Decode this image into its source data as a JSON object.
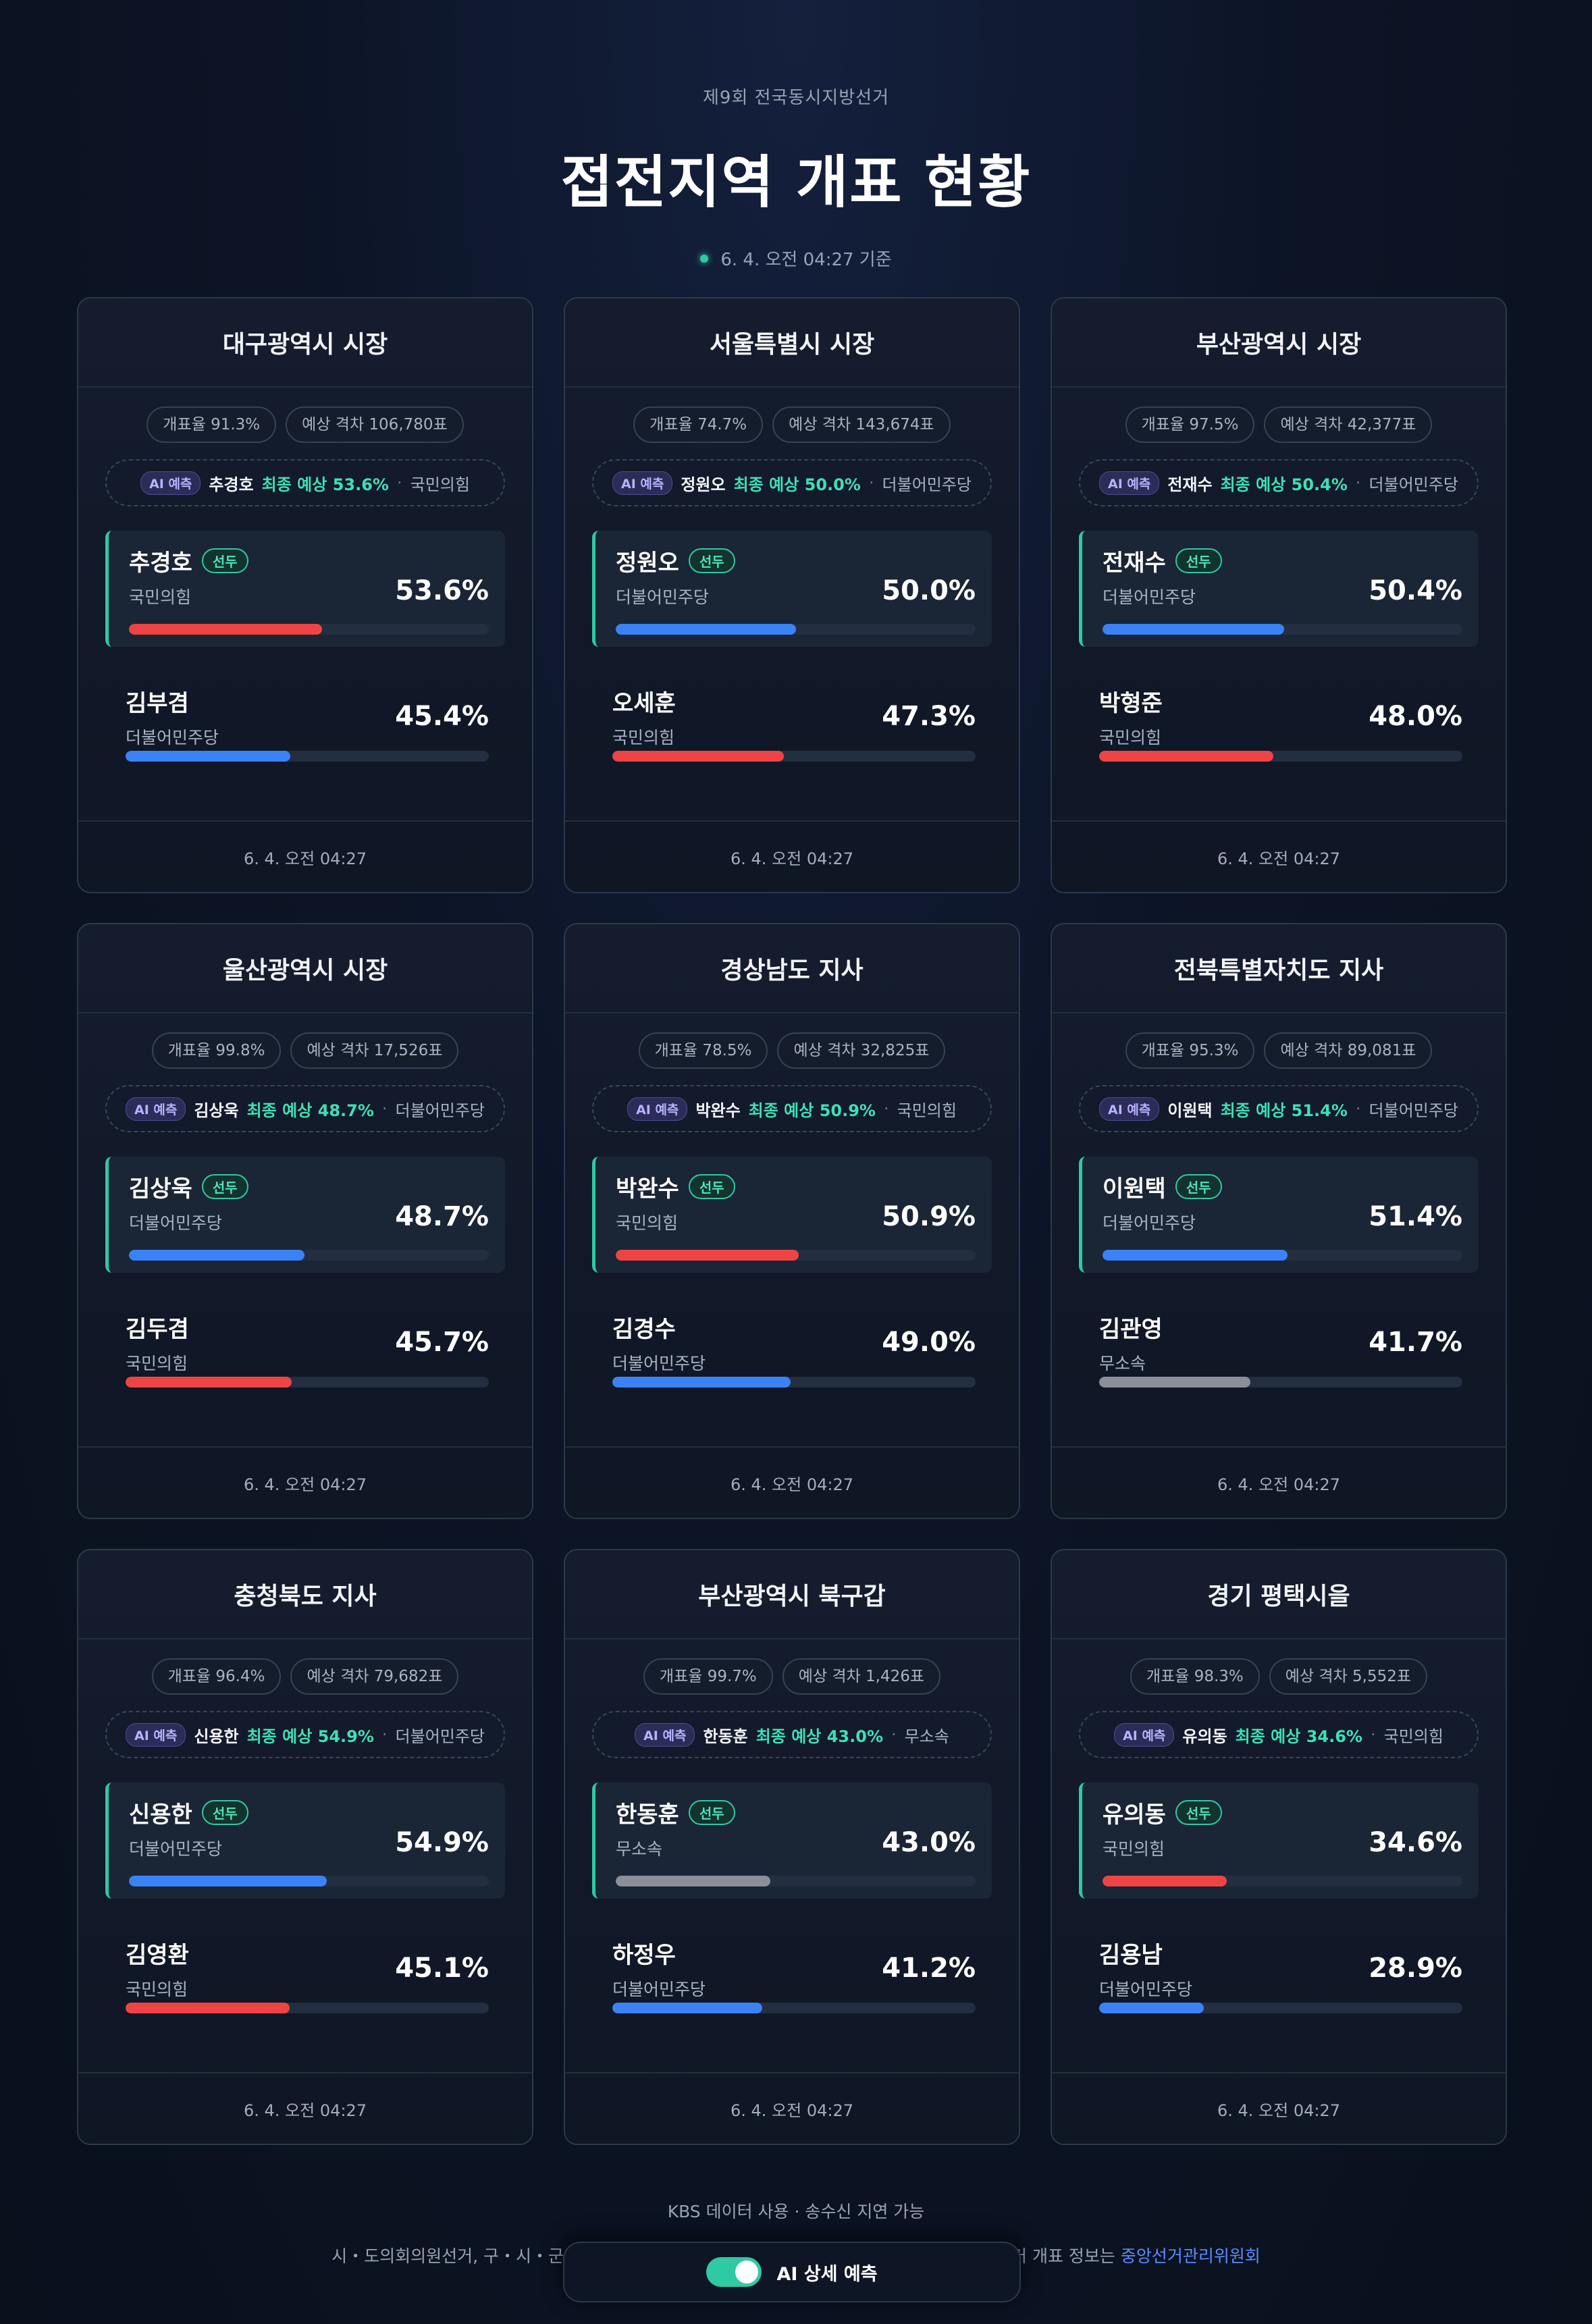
{
  "header": {
    "subtitle": "제9회 전국동시지방선거",
    "title": "접전지역 개표 현황",
    "timestamp": "6. 4. 오전 04:27 기준"
  },
  "colors": {
    "people_power": "#ef4444",
    "democratic": "#3b82f6",
    "independent": "#8b8f99",
    "accent": "#2fc9a3"
  },
  "cards": [
    {
      "title": "대구광역시 시장",
      "count_rate": "개표율 91.3%",
      "margin": "예상 격차 106,780표",
      "ai_badge": "AI 예측",
      "ai_name": "추경호",
      "ai_pred": "최종 예상 53.6%",
      "ai_party": "국민의힘",
      "lead": {
        "name": "추경호",
        "badge": "선두",
        "party": "국민의힘",
        "pct_label": "53.6%",
        "pct": 53.6,
        "color": "#ef4444"
      },
      "second": {
        "name": "김부겸",
        "party": "더불어민주당",
        "pct_label": "45.4%",
        "pct": 45.4,
        "color": "#3b82f6"
      },
      "footer": "6. 4. 오전 04:27"
    },
    {
      "title": "서울특별시 시장",
      "count_rate": "개표율 74.7%",
      "margin": "예상 격차 143,674표",
      "ai_badge": "AI 예측",
      "ai_name": "정원오",
      "ai_pred": "최종 예상 50.0%",
      "ai_party": "더불어민주당",
      "lead": {
        "name": "정원오",
        "badge": "선두",
        "party": "더불어민주당",
        "pct_label": "50.0%",
        "pct": 50.0,
        "color": "#3b82f6"
      },
      "second": {
        "name": "오세훈",
        "party": "국민의힘",
        "pct_label": "47.3%",
        "pct": 47.3,
        "color": "#ef4444"
      },
      "footer": "6. 4. 오전 04:27"
    },
    {
      "title": "부산광역시 시장",
      "count_rate": "개표율 97.5%",
      "margin": "예상 격차 42,377표",
      "ai_badge": "AI 예측",
      "ai_name": "전재수",
      "ai_pred": "최종 예상 50.4%",
      "ai_party": "더불어민주당",
      "lead": {
        "name": "전재수",
        "badge": "선두",
        "party": "더불어민주당",
        "pct_label": "50.4%",
        "pct": 50.4,
        "color": "#3b82f6"
      },
      "second": {
        "name": "박형준",
        "party": "국민의힘",
        "pct_label": "48.0%",
        "pct": 48.0,
        "color": "#ef4444"
      },
      "footer": "6. 4. 오전 04:27"
    },
    {
      "title": "울산광역시 시장",
      "count_rate": "개표율 99.8%",
      "margin": "예상 격차 17,526표",
      "ai_badge": "AI 예측",
      "ai_name": "김상욱",
      "ai_pred": "최종 예상 48.7%",
      "ai_party": "더불어민주당",
      "lead": {
        "name": "김상욱",
        "badge": "선두",
        "party": "더불어민주당",
        "pct_label": "48.7%",
        "pct": 48.7,
        "color": "#3b82f6"
      },
      "second": {
        "name": "김두겸",
        "party": "국민의힘",
        "pct_label": "45.7%",
        "pct": 45.7,
        "color": "#ef4444"
      },
      "footer": "6. 4. 오전 04:27"
    },
    {
      "title": "경상남도 지사",
      "count_rate": "개표율 78.5%",
      "margin": "예상 격차 32,825표",
      "ai_badge": "AI 예측",
      "ai_name": "박완수",
      "ai_pred": "최종 예상 50.9%",
      "ai_party": "국민의힘",
      "lead": {
        "name": "박완수",
        "badge": "선두",
        "party": "국민의힘",
        "pct_label": "50.9%",
        "pct": 50.9,
        "color": "#ef4444"
      },
      "second": {
        "name": "김경수",
        "party": "더불어민주당",
        "pct_label": "49.0%",
        "pct": 49.0,
        "color": "#3b82f6"
      },
      "footer": "6. 4. 오전 04:27"
    },
    {
      "title": "전북특별자치도 지사",
      "count_rate": "개표율 95.3%",
      "margin": "예상 격차 89,081표",
      "ai_badge": "AI 예측",
      "ai_name": "이원택",
      "ai_pred": "최종 예상 51.4%",
      "ai_party": "더불어민주당",
      "lead": {
        "name": "이원택",
        "badge": "선두",
        "party": "더불어민주당",
        "pct_label": "51.4%",
        "pct": 51.4,
        "color": "#3b82f6"
      },
      "second": {
        "name": "김관영",
        "party": "무소속",
        "pct_label": "41.7%",
        "pct": 41.7,
        "color": "#8b8f99"
      },
      "footer": "6. 4. 오전 04:27"
    },
    {
      "title": "충청북도 지사",
      "count_rate": "개표율 96.4%",
      "margin": "예상 격차 79,682표",
      "ai_badge": "AI 예측",
      "ai_name": "신용한",
      "ai_pred": "최종 예상 54.9%",
      "ai_party": "더불어민주당",
      "lead": {
        "name": "신용한",
        "badge": "선두",
        "party": "더불어민주당",
        "pct_label": "54.9%",
        "pct": 54.9,
        "color": "#3b82f6"
      },
      "second": {
        "name": "김영환",
        "party": "국민의힘",
        "pct_label": "45.1%",
        "pct": 45.1,
        "color": "#ef4444"
      },
      "footer": "6. 4. 오전 04:27"
    },
    {
      "title": "부산광역시 북구갑",
      "count_rate": "개표율 99.7%",
      "margin": "예상 격차 1,426표",
      "ai_badge": "AI 예측",
      "ai_name": "한동훈",
      "ai_pred": "최종 예상 43.0%",
      "ai_party": "무소속",
      "lead": {
        "name": "한동훈",
        "badge": "선두",
        "party": "무소속",
        "pct_label": "43.0%",
        "pct": 43.0,
        "color": "#8b8f99"
      },
      "second": {
        "name": "하정우",
        "party": "더불어민주당",
        "pct_label": "41.2%",
        "pct": 41.2,
        "color": "#3b82f6"
      },
      "footer": "6. 4. 오전 04:27"
    },
    {
      "title": "경기 평택시을",
      "count_rate": "개표율 98.3%",
      "margin": "예상 격차 5,552표",
      "ai_badge": "AI 예측",
      "ai_name": "유의동",
      "ai_pred": "최종 예상 34.6%",
      "ai_party": "국민의힘",
      "lead": {
        "name": "유의동",
        "badge": "선두",
        "party": "국민의힘",
        "pct_label": "34.6%",
        "pct": 34.6,
        "color": "#ef4444"
      },
      "second": {
        "name": "김용남",
        "party": "더불어민주당",
        "pct_label": "28.9%",
        "pct": 28.9,
        "color": "#3b82f6"
      },
      "footer": "6. 4. 오전 04:27"
    }
  ],
  "footer": {
    "source": "KBS 데이터 사용 · 송수신 지연 가능",
    "note_left": "시・도의회의원선거, 구・시・군",
    "note_right": "선거 개표 정보는",
    "link": "중앙선거관리위원회"
  },
  "ai_toggle": {
    "label": "AI 상세 예측",
    "on": true
  }
}
